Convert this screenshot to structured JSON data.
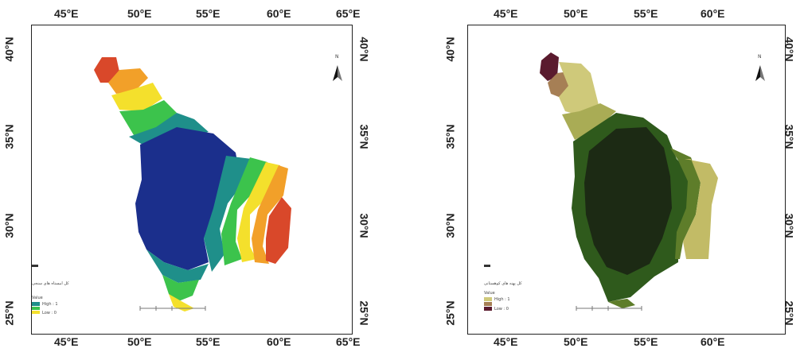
{
  "left_map": {
    "lon_ticks": [
      "45°E",
      "50°E",
      "55°E",
      "60°E",
      "65°E"
    ],
    "lat_ticks": [
      "40°N",
      "35°N",
      "30°N",
      "25°N"
    ],
    "north_label": "N",
    "legend": {
      "title": "كل ابيستاه هاى سنجى",
      "value_label": "Value",
      "high_label": "High : 1",
      "low_label": "Low : 0",
      "colors": [
        "#1a2f8a",
        "#1f8f8a",
        "#39c24a",
        "#f2e627",
        "#f2991f",
        "#e0452a"
      ]
    }
  },
  "right_map": {
    "lon_ticks": [
      "45°E",
      "50°E",
      "55°E",
      "60°E"
    ],
    "lat_ticks": [
      "40°N",
      "35°N",
      "30°N",
      "25°N"
    ],
    "north_label": "N",
    "legend": {
      "title": "كل پهنه هاى كوهستانى",
      "value_label": "Value",
      "high_label": "High : 1",
      "low_label": "Low : 0",
      "colors": [
        "#1c2a14",
        "#2f5a1c",
        "#5e7d2a",
        "#a9ac55",
        "#cfc97a",
        "#a67f55",
        "#5a1a2e"
      ]
    }
  }
}
